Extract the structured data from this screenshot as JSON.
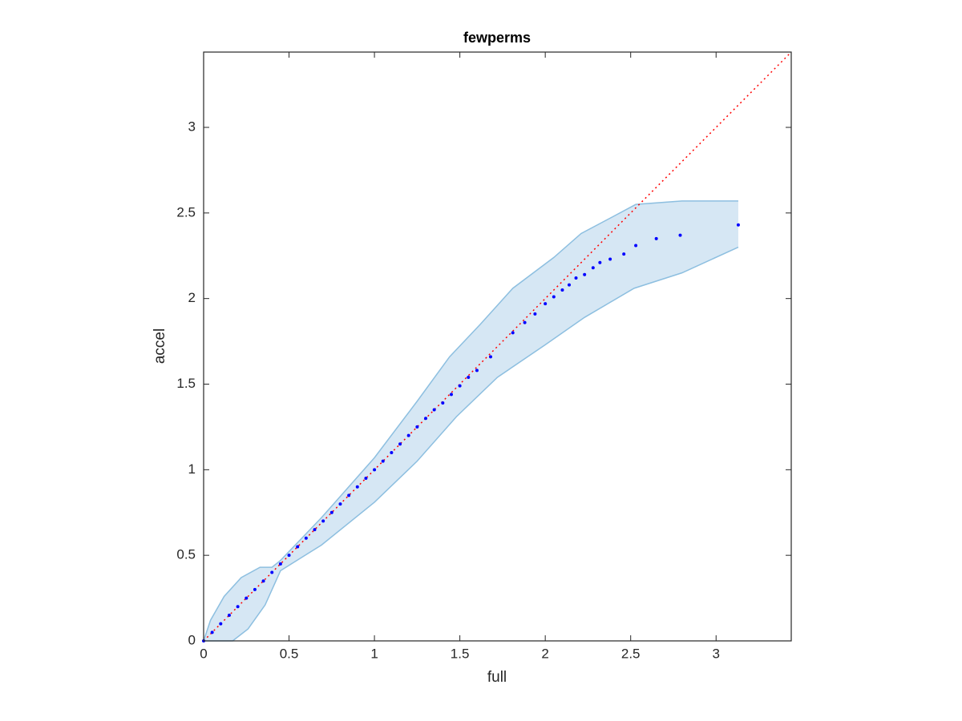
{
  "chart_data": {
    "type": "scatter",
    "title": "fewperms",
    "xlabel": "full",
    "ylabel": "accel",
    "xlim": [
      0,
      3.44
    ],
    "ylim": [
      0,
      3.44
    ],
    "xticks": [
      0,
      0.5,
      1,
      1.5,
      2,
      2.5,
      3
    ],
    "yticks": [
      0,
      0.5,
      1,
      1.5,
      2,
      2.5,
      3
    ],
    "points": {
      "color": "#0000ff",
      "x": [
        0,
        0.05,
        0.1,
        0.15,
        0.2,
        0.25,
        0.3,
        0.35,
        0.4,
        0.45,
        0.5,
        0.55,
        0.6,
        0.65,
        0.7,
        0.75,
        0.8,
        0.85,
        0.9,
        0.95,
        1,
        1.05,
        1.1,
        1.15,
        1.2,
        1.25,
        1.3,
        1.35,
        1.4,
        1.45,
        1.5,
        1.55,
        1.6,
        1.68,
        1.81,
        1.88,
        1.94,
        2,
        2.05,
        2.1,
        2.14,
        2.18,
        2.23,
        2.28,
        2.32,
        2.38,
        2.46,
        2.53,
        2.65,
        2.79,
        3.13
      ],
      "y": [
        0,
        0.05,
        0.1,
        0.15,
        0.2,
        0.25,
        0.3,
        0.35,
        0.4,
        0.45,
        0.5,
        0.55,
        0.6,
        0.65,
        0.7,
        0.75,
        0.8,
        0.85,
        0.9,
        0.95,
        1,
        1.05,
        1.1,
        1.15,
        1.2,
        1.25,
        1.3,
        1.35,
        1.39,
        1.44,
        1.49,
        1.54,
        1.58,
        1.66,
        1.8,
        1.86,
        1.91,
        1.97,
        2.01,
        2.05,
        2.08,
        2.12,
        2.14,
        2.18,
        2.21,
        2.23,
        2.26,
        2.31,
        2.35,
        2.37,
        2.43
      ]
    },
    "band": {
      "color": "#d6e7f4",
      "edge_color": "#8dbfe0",
      "upper": {
        "x": [
          0,
          0.04,
          0.12,
          0.22,
          0.33,
          0.4,
          0.45,
          0.69,
          1,
          1.25,
          1.44,
          1.62,
          1.81,
          2.05,
          2.21,
          2.38,
          2.53,
          2.8,
          3.13
        ],
        "y": [
          0,
          0.12,
          0.26,
          0.37,
          0.43,
          0.43,
          0.47,
          0.72,
          1.07,
          1.4,
          1.66,
          1.85,
          2.06,
          2.24,
          2.38,
          2.47,
          2.55,
          2.57,
          2.57
        ]
      },
      "lower": {
        "x": [
          0,
          0.17,
          0.26,
          0.36,
          0.45,
          0.69,
          1,
          1.25,
          1.48,
          1.72,
          2,
          2.23,
          2.52,
          2.8,
          3.13
        ],
        "y": [
          0,
          0,
          0.07,
          0.21,
          0.41,
          0.56,
          0.81,
          1.05,
          1.31,
          1.54,
          1.73,
          1.89,
          2.06,
          2.15,
          2.3
        ]
      }
    },
    "reference": {
      "color": "#ff0000",
      "x": [
        0,
        3.44
      ],
      "y": [
        0,
        3.44
      ]
    }
  }
}
